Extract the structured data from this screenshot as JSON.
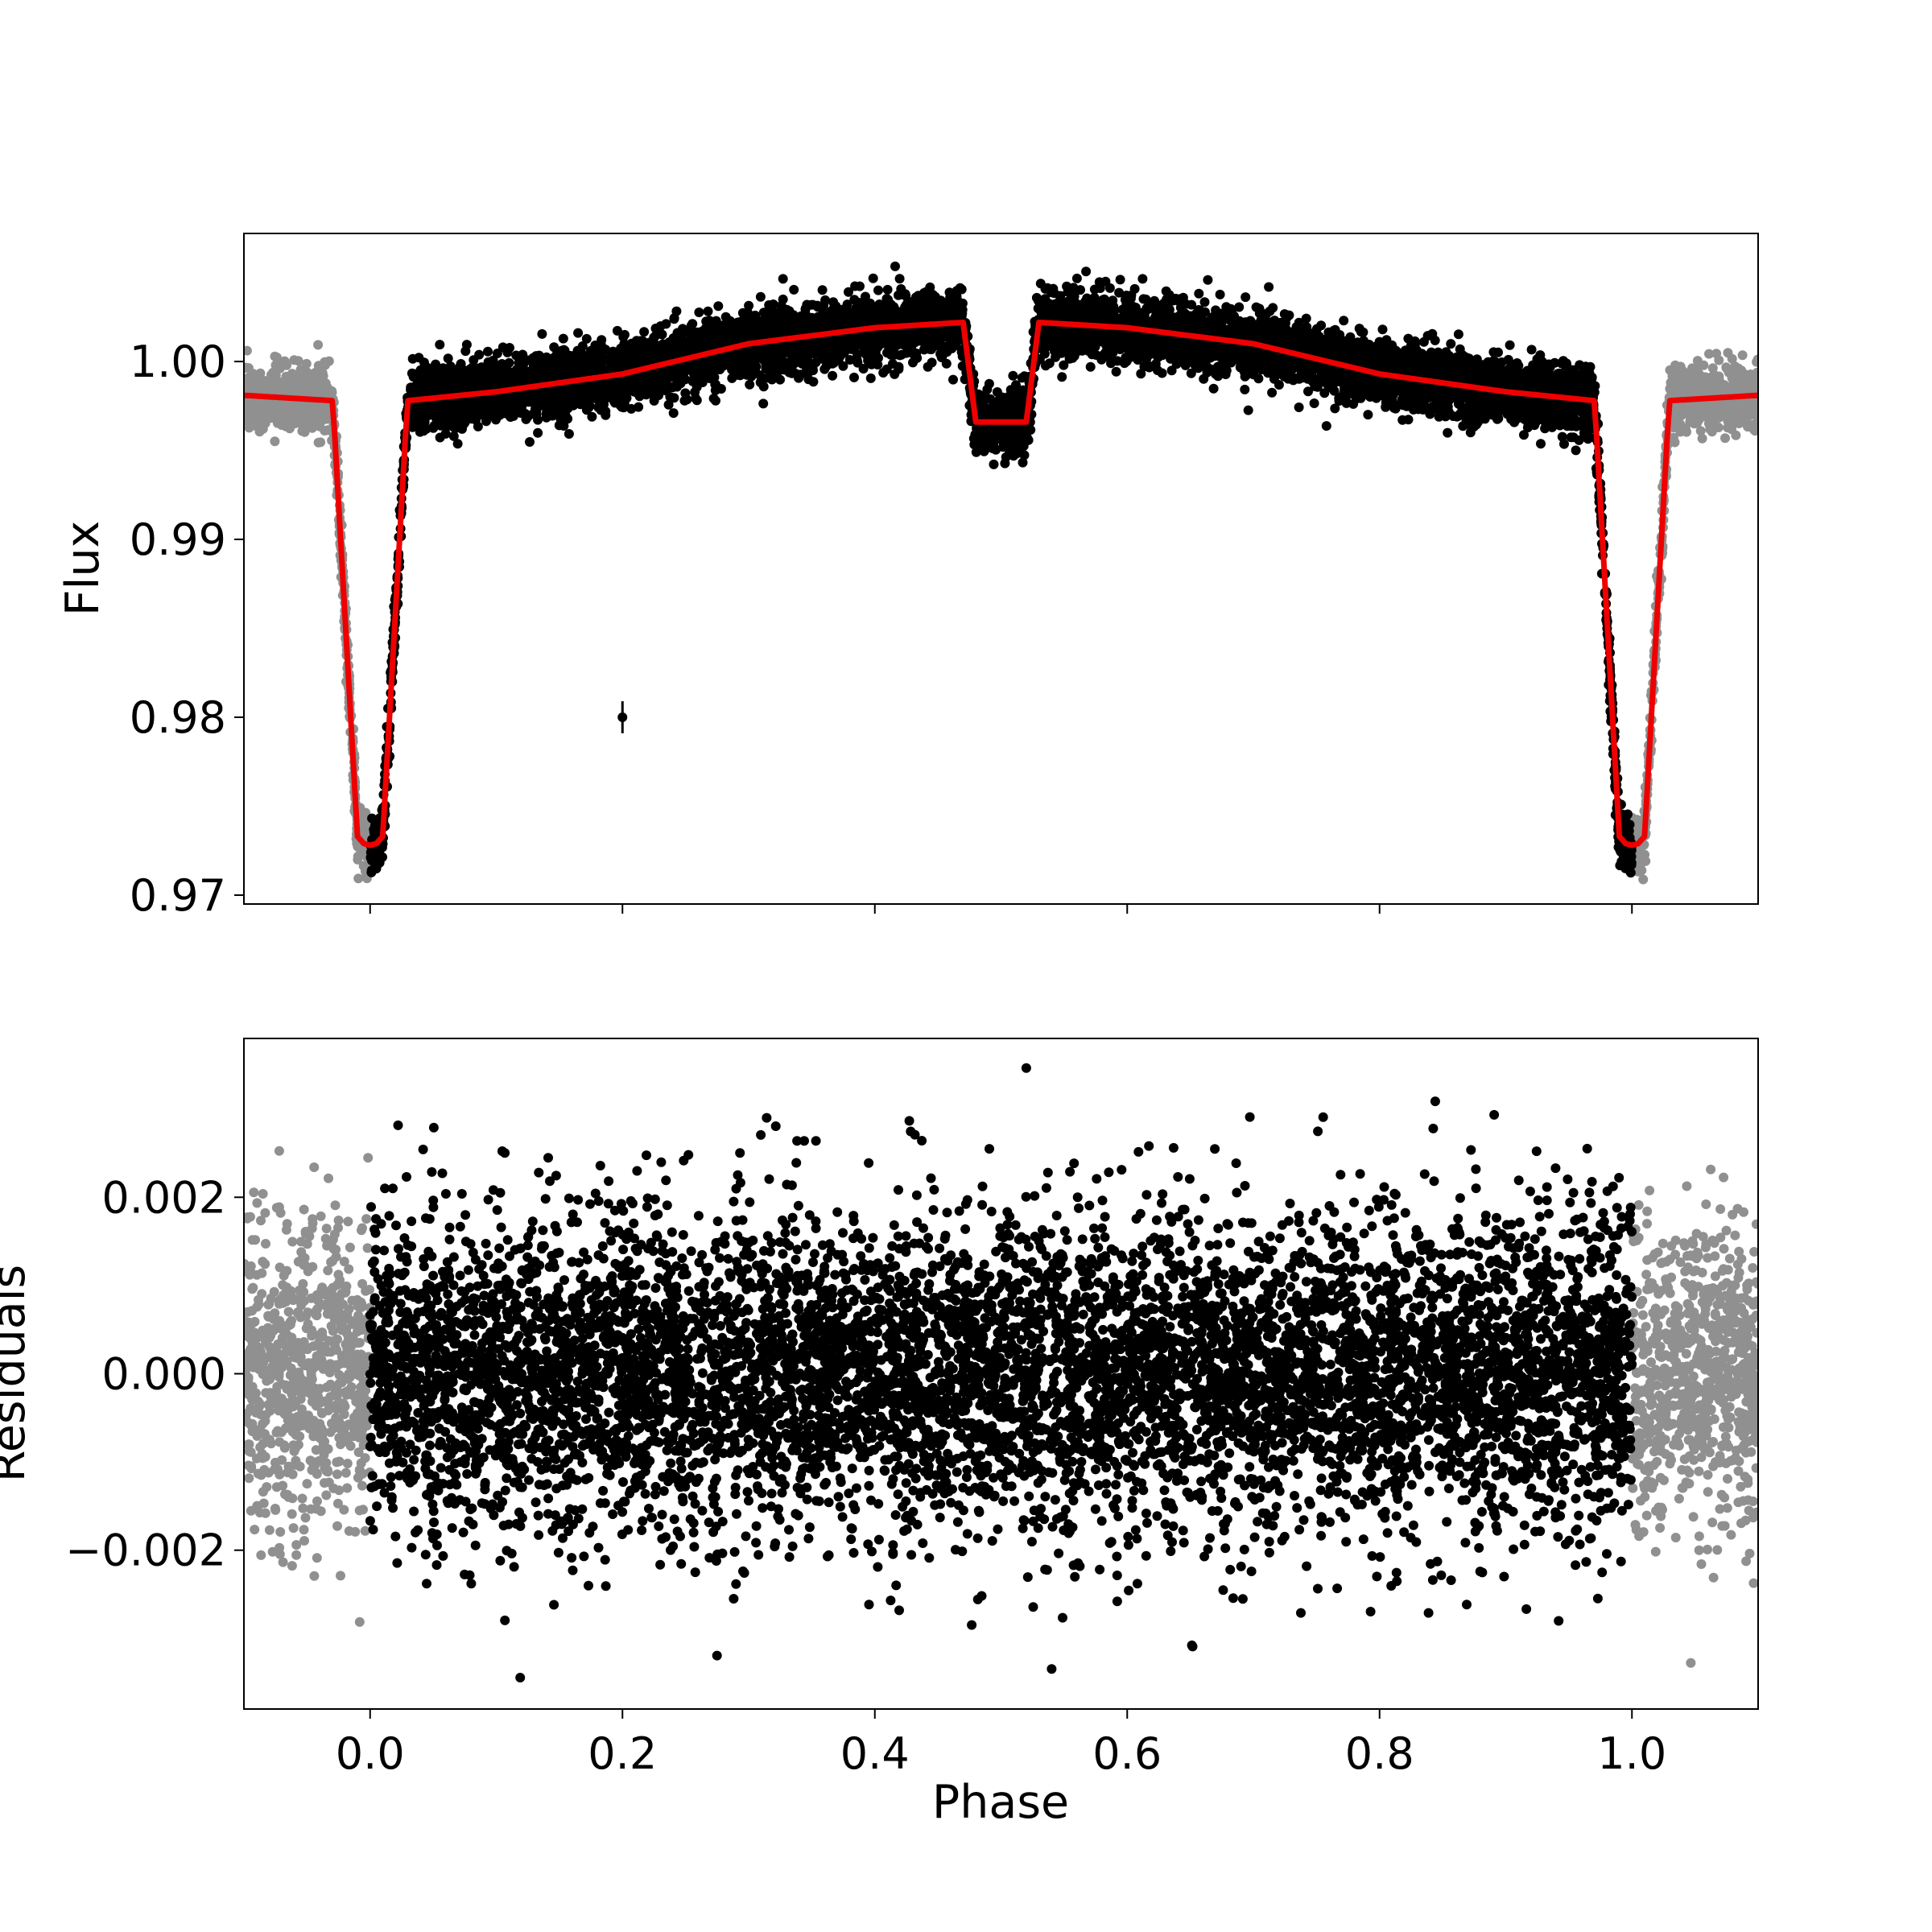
{
  "chart_data": [
    {
      "type": "scatter",
      "panel": "top",
      "xlabel": "",
      "ylabel": "Flux",
      "xlim": [
        -0.1,
        1.1
      ],
      "ylim": [
        0.9695,
        1.0072
      ],
      "xticks": [
        0.0,
        0.2,
        0.4,
        0.6,
        0.8,
        1.0
      ],
      "xtick_labels": [
        "",
        "",
        "",
        "",
        "",
        ""
      ],
      "yticks": [
        0.97,
        0.98,
        0.99,
        1.0
      ],
      "ytick_labels": [
        "0.97",
        "0.98",
        "0.99",
        "1.00"
      ],
      "grid": false,
      "series": [
        {
          "role": "data-phase-0-to-1",
          "color": "#000000",
          "description_points": "dense black points, continuum ~0.998 rising to ~1.002 at phase 0.45, primary eclipse to ~0.9725 at phase 0 and 1, secondary eclipse to ~0.9965 at phase 0.5"
        },
        {
          "role": "data-wrapped",
          "color": "#909090",
          "x_range": [
            [
              -0.1,
              0.0
            ],
            [
              1.0,
              1.1
            ]
          ]
        },
        {
          "role": "model",
          "color": "#ee0000",
          "x": [
            -0.1,
            -0.03,
            -0.028,
            -0.01,
            -0.005,
            0.0,
            0.005,
            0.01,
            0.028,
            0.03,
            0.1,
            0.2,
            0.3,
            0.4,
            0.47,
            0.48,
            0.52,
            0.53,
            0.6,
            0.7,
            0.8,
            0.9,
            0.97,
            0.972,
            0.99,
            0.995,
            1.0,
            1.005,
            1.01,
            1.028,
            1.03,
            1.1
          ],
          "y": [
            0.9981,
            0.9978,
            0.9958,
            0.9733,
            0.9729,
            0.9728,
            0.9729,
            0.9733,
            0.9958,
            0.9978,
            0.9983,
            0.9993,
            1.001,
            1.0019,
            1.0022,
            0.9966,
            0.9966,
            1.0022,
            1.0019,
            1.001,
            0.9993,
            0.9983,
            0.9978,
            0.9958,
            0.9733,
            0.9729,
            0.9728,
            0.9729,
            0.9733,
            0.9958,
            0.9978,
            0.9981
          ]
        },
        {
          "role": "error-bar-marker",
          "color": "#000000",
          "x": 0.2,
          "y": 0.98,
          "yerr": 0.0009
        }
      ]
    },
    {
      "type": "scatter",
      "panel": "bottom",
      "xlabel": "Phase",
      "ylabel": "Residuals",
      "xlim": [
        -0.1,
        1.1
      ],
      "ylim": [
        -0.0038,
        0.0038
      ],
      "xticks": [
        0.0,
        0.2,
        0.4,
        0.6,
        0.8,
        1.0
      ],
      "xtick_labels": [
        "0.0",
        "0.2",
        "0.4",
        "0.6",
        "0.8",
        "1.0"
      ],
      "yticks": [
        -0.002,
        0.0,
        0.002
      ],
      "ytick_labels": [
        "−0.002",
        "0.000",
        "0.002"
      ],
      "grid": false,
      "series": [
        {
          "role": "residuals-phase-0-to-1",
          "color": "#000000",
          "center": 0.0,
          "sigma": 0.0009,
          "extent": [
            -0.0035,
            0.0035
          ]
        },
        {
          "role": "residuals-wrapped",
          "color": "#909090",
          "x_range": [
            [
              -0.1,
              0.0
            ],
            [
              1.0,
              1.1
            ]
          ]
        }
      ]
    }
  ]
}
